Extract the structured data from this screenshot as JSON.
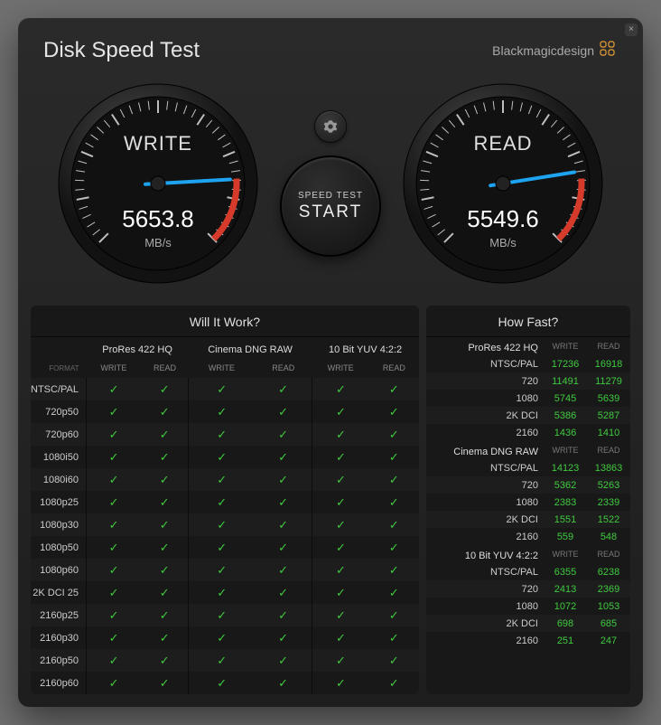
{
  "app": {
    "title": "Disk Speed Test",
    "brand": "Blackmagicdesign"
  },
  "gauges": {
    "write": {
      "label": "WRITE",
      "value": "5653.8",
      "unit": "MB/s",
      "needle_angle": 115
    },
    "read": {
      "label": "READ",
      "value": "5549.6",
      "unit": "MB/s",
      "needle_angle": 112
    }
  },
  "startButton": {
    "small": "SPEED TEST",
    "big": "START"
  },
  "colors": {
    "needle": "#1ea3f0",
    "redzone": "#d53a2a",
    "tick": "#bfbfbf",
    "gaugeRim": "#3a3a3a",
    "gaugeFace": "#111111",
    "checkmark": "#3fca3f"
  },
  "willItWork": {
    "title": "Will It Work?",
    "formatHeader": "FORMAT",
    "codecs": [
      "ProRes 422 HQ",
      "Cinema DNG RAW",
      "10 Bit YUV 4:2:2"
    ],
    "subHeaders": [
      "WRITE",
      "READ"
    ],
    "formats": [
      "NTSC/PAL",
      "720p50",
      "720p60",
      "1080i50",
      "1080i60",
      "1080p25",
      "1080p30",
      "1080p50",
      "1080p60",
      "2K DCI 25",
      "2160p25",
      "2160p30",
      "2160p50",
      "2160p60"
    ]
  },
  "howFast": {
    "title": "How Fast?",
    "subHeaders": [
      "WRITE",
      "READ"
    ],
    "sections": [
      {
        "title": "ProRes 422 HQ",
        "rows": [
          {
            "format": "NTSC/PAL",
            "write": "17236",
            "read": "16918"
          },
          {
            "format": "720",
            "write": "11491",
            "read": "11279"
          },
          {
            "format": "1080",
            "write": "5745",
            "read": "5639"
          },
          {
            "format": "2K DCI",
            "write": "5386",
            "read": "5287"
          },
          {
            "format": "2160",
            "write": "1436",
            "read": "1410"
          }
        ]
      },
      {
        "title": "Cinema DNG RAW",
        "rows": [
          {
            "format": "NTSC/PAL",
            "write": "14123",
            "read": "13863"
          },
          {
            "format": "720",
            "write": "5362",
            "read": "5263"
          },
          {
            "format": "1080",
            "write": "2383",
            "read": "2339"
          },
          {
            "format": "2K DCI",
            "write": "1551",
            "read": "1522"
          },
          {
            "format": "2160",
            "write": "559",
            "read": "548"
          }
        ]
      },
      {
        "title": "10 Bit YUV 4:2:2",
        "rows": [
          {
            "format": "NTSC/PAL",
            "write": "6355",
            "read": "6238"
          },
          {
            "format": "720",
            "write": "2413",
            "read": "2369"
          },
          {
            "format": "1080",
            "write": "1072",
            "read": "1053"
          },
          {
            "format": "2K DCI",
            "write": "698",
            "read": "685"
          },
          {
            "format": "2160",
            "write": "251",
            "read": "247"
          }
        ]
      }
    ]
  }
}
